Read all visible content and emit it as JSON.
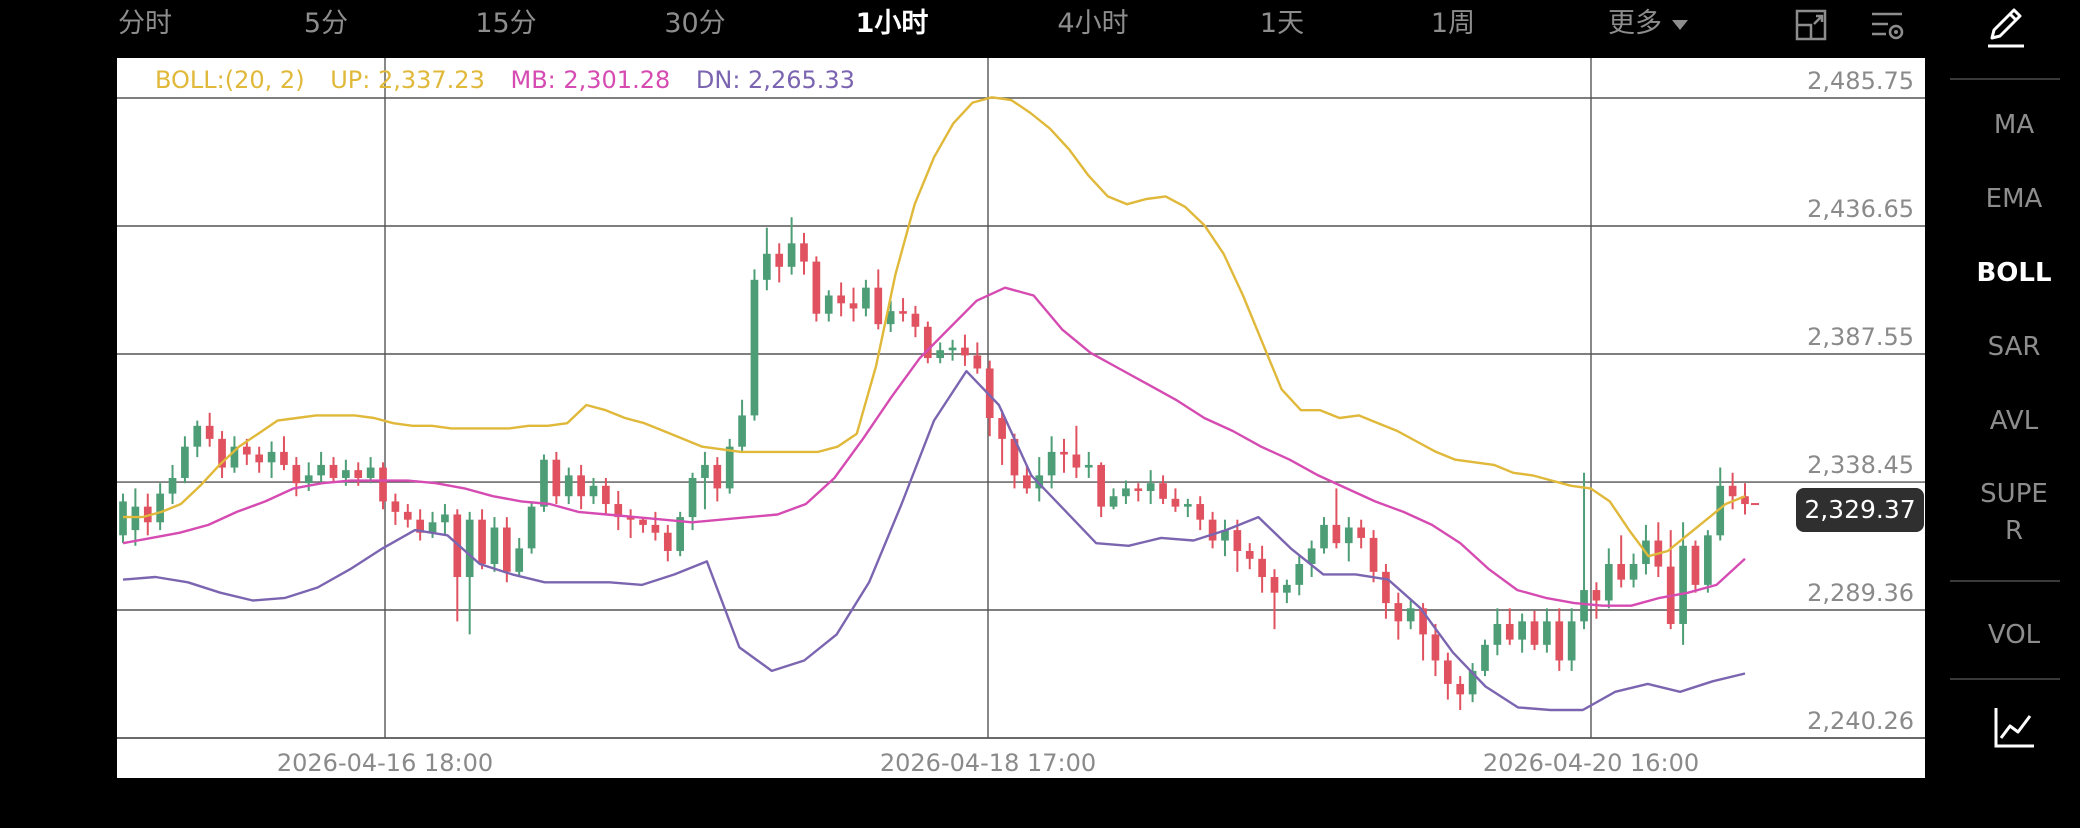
{
  "timeframes": [
    {
      "label": "分时",
      "active": false
    },
    {
      "label": "5分",
      "active": false
    },
    {
      "label": "15分",
      "active": false
    },
    {
      "label": "30分",
      "active": false
    },
    {
      "label": "1小时",
      "active": true
    },
    {
      "label": "4小时",
      "active": false
    },
    {
      "label": "1天",
      "active": false
    },
    {
      "label": "1周",
      "active": false
    },
    {
      "label": "更多",
      "active": false
    }
  ],
  "toolbar_icons": [
    "landscape-icon",
    "chart-settings-icon",
    "pencil-draw-icon"
  ],
  "indicators": {
    "main": [
      "MA",
      "EMA",
      "BOLL",
      "SAR",
      "AVL",
      "SUPE\nR"
    ],
    "active": "BOLL",
    "sub": [
      "VOL"
    ],
    "bottom_icon": "indicator-chart-icon"
  },
  "legend": {
    "name": "BOLL:(20, 2)",
    "up": "UP: 2,337.23",
    "mb": "MB: 2,301.28",
    "dn": "DN: 2,265.33"
  },
  "current_price": "2,329.37",
  "colors": {
    "background": "#000000",
    "chart_bg": "#ffffff",
    "up_candle": "#4d9e76",
    "down_candle": "#e0525f",
    "boll_up": "#e0b83a",
    "boll_mid": "#d54bb2",
    "boll_dn": "#7b65b0",
    "grid": "#555555",
    "axis_text": "#8a8a8a"
  },
  "chart_data": {
    "type": "candlestick",
    "y_ticks": [
      "2,485.75",
      "2,436.65",
      "2,387.55",
      "2,338.45",
      "2,289.36",
      "2,240.26"
    ],
    "x_ticks": [
      "2026-04-16 18:00",
      "2026-04-18 17:00",
      "2026-04-20 16:00"
    ],
    "ylim": [
      2240.26,
      2485.75
    ],
    "grid": true,
    "indicator": "BOLL(20, 2)",
    "candles": [
      [
        2318,
        2331,
        2315,
        2334
      ],
      [
        2320,
        2329,
        2314,
        2336
      ],
      [
        2329,
        2323,
        2318,
        2334
      ],
      [
        2323,
        2334,
        2320,
        2338
      ],
      [
        2334,
        2340,
        2330,
        2345
      ],
      [
        2340,
        2352,
        2338,
        2356
      ],
      [
        2352,
        2360,
        2348,
        2362
      ],
      [
        2360,
        2355,
        2352,
        2365
      ],
      [
        2355,
        2344,
        2340,
        2358
      ],
      [
        2344,
        2352,
        2342,
        2356
      ],
      [
        2352,
        2349,
        2345,
        2355
      ],
      [
        2349,
        2346,
        2342,
        2352
      ],
      [
        2346,
        2350,
        2340,
        2354
      ],
      [
        2350,
        2345,
        2343,
        2356
      ],
      [
        2345,
        2338,
        2333,
        2348
      ],
      [
        2338,
        2341,
        2335,
        2346
      ],
      [
        2341,
        2345,
        2338,
        2350
      ],
      [
        2345,
        2340,
        2338,
        2348
      ],
      [
        2340,
        2343,
        2337,
        2347
      ],
      [
        2343,
        2340,
        2337,
        2346
      ],
      [
        2340,
        2344,
        2338,
        2348
      ],
      [
        2344,
        2331,
        2328,
        2346
      ],
      [
        2331,
        2327,
        2322,
        2334
      ],
      [
        2327,
        2324,
        2321,
        2330
      ],
      [
        2324,
        2319,
        2316,
        2328
      ],
      [
        2319,
        2323,
        2317,
        2327
      ],
      [
        2323,
        2326,
        2318,
        2330
      ],
      [
        2326,
        2302,
        2285,
        2328
      ],
      [
        2302,
        2324,
        2280,
        2327
      ],
      [
        2324,
        2307,
        2305,
        2328
      ],
      [
        2307,
        2321,
        2304,
        2325
      ],
      [
        2321,
        2304,
        2300,
        2325
      ],
      [
        2304,
        2313,
        2302,
        2317
      ],
      [
        2313,
        2329,
        2311,
        2331
      ],
      [
        2329,
        2347,
        2327,
        2349
      ],
      [
        2347,
        2333,
        2330,
        2350
      ],
      [
        2333,
        2341,
        2330,
        2344
      ],
      [
        2341,
        2333,
        2328,
        2345
      ],
      [
        2333,
        2337,
        2330,
        2340
      ],
      [
        2337,
        2330,
        2326,
        2340
      ],
      [
        2330,
        2325,
        2320,
        2335
      ],
      [
        2325,
        2324,
        2317,
        2328
      ],
      [
        2324,
        2322,
        2319,
        2325
      ],
      [
        2322,
        2319,
        2316,
        2327
      ],
      [
        2319,
        2312,
        2308,
        2322
      ],
      [
        2312,
        2325,
        2310,
        2327
      ],
      [
        2325,
        2340,
        2320,
        2342
      ],
      [
        2340,
        2345,
        2328,
        2350
      ],
      [
        2345,
        2336,
        2331,
        2348
      ],
      [
        2336,
        2352,
        2334,
        2355
      ],
      [
        2352,
        2364,
        2350,
        2370
      ],
      [
        2364,
        2416,
        2362,
        2420
      ],
      [
        2416,
        2426,
        2412,
        2436
      ],
      [
        2426,
        2421,
        2415,
        2430
      ],
      [
        2421,
        2430,
        2418,
        2440
      ],
      [
        2430,
        2423,
        2418,
        2434
      ],
      [
        2423,
        2403,
        2400,
        2425
      ],
      [
        2403,
        2410,
        2400,
        2412
      ],
      [
        2410,
        2407,
        2402,
        2415
      ],
      [
        2407,
        2405,
        2400,
        2413
      ],
      [
        2405,
        2413,
        2402,
        2416
      ],
      [
        2413,
        2399,
        2397,
        2420
      ],
      [
        2399,
        2404,
        2396,
        2408
      ],
      [
        2404,
        2403,
        2400,
        2409
      ],
      [
        2403,
        2398,
        2394,
        2406
      ],
      [
        2398,
        2386,
        2384,
        2400
      ],
      [
        2386,
        2389,
        2384,
        2392
      ],
      [
        2389,
        2390,
        2385,
        2393
      ],
      [
        2390,
        2387,
        2383,
        2395
      ],
      [
        2387,
        2382,
        2380,
        2392
      ],
      [
        2382,
        2363,
        2356,
        2385
      ],
      [
        2363,
        2355,
        2345,
        2366
      ],
      [
        2355,
        2341,
        2336,
        2357
      ],
      [
        2341,
        2336,
        2334,
        2345
      ],
      [
        2336,
        2341,
        2331,
        2348
      ],
      [
        2341,
        2350,
        2336,
        2356
      ],
      [
        2350,
        2349,
        2342,
        2355
      ],
      [
        2349,
        2344,
        2340,
        2360
      ],
      [
        2344,
        2345,
        2340,
        2350
      ],
      [
        2345,
        2329,
        2325,
        2346
      ],
      [
        2329,
        2333,
        2328,
        2336
      ],
      [
        2333,
        2336,
        2330,
        2339
      ],
      [
        2336,
        2335,
        2331,
        2338
      ],
      [
        2335,
        2338,
        2330,
        2343
      ],
      [
        2338,
        2332,
        2330,
        2341
      ],
      [
        2332,
        2329,
        2327,
        2336
      ],
      [
        2329,
        2330,
        2325,
        2332
      ],
      [
        2330,
        2324,
        2320,
        2333
      ],
      [
        2324,
        2316,
        2313,
        2327
      ],
      [
        2316,
        2320,
        2310,
        2324
      ],
      [
        2320,
        2312,
        2304,
        2324
      ],
      [
        2312,
        2309,
        2305,
        2315
      ],
      [
        2309,
        2302,
        2296,
        2314
      ],
      [
        2302,
        2296,
        2282,
        2305
      ],
      [
        2296,
        2299,
        2292,
        2301
      ],
      [
        2299,
        2307,
        2295,
        2310
      ],
      [
        2307,
        2313,
        2302,
        2316
      ],
      [
        2313,
        2322,
        2311,
        2325
      ],
      [
        2322,
        2315,
        2313,
        2336
      ],
      [
        2315,
        2321,
        2308,
        2325
      ],
      [
        2321,
        2317,
        2313,
        2324
      ],
      [
        2317,
        2304,
        2300,
        2320
      ],
      [
        2304,
        2292,
        2286,
        2307
      ],
      [
        2292,
        2285,
        2278,
        2296
      ],
      [
        2285,
        2290,
        2282,
        2293
      ],
      [
        2290,
        2280,
        2270,
        2292
      ],
      [
        2280,
        2270,
        2264,
        2284
      ],
      [
        2270,
        2261,
        2255,
        2273
      ],
      [
        2261,
        2257,
        2251,
        2264
      ],
      [
        2257,
        2266,
        2254,
        2269
      ],
      [
        2266,
        2276,
        2264,
        2278
      ],
      [
        2276,
        2284,
        2272,
        2290
      ],
      [
        2284,
        2278,
        2276,
        2290
      ],
      [
        2278,
        2285,
        2273,
        2288
      ],
      [
        2285,
        2276,
        2274,
        2289
      ],
      [
        2276,
        2285,
        2273,
        2290
      ],
      [
        2285,
        2270,
        2266,
        2290
      ],
      [
        2270,
        2285,
        2266,
        2290
      ],
      [
        2285,
        2297,
        2282,
        2342
      ],
      [
        2297,
        2293,
        2286,
        2300
      ],
      [
        2293,
        2307,
        2290,
        2313
      ],
      [
        2307,
        2301,
        2298,
        2318
      ],
      [
        2301,
        2307,
        2298,
        2311
      ],
      [
        2307,
        2316,
        2303,
        2322
      ],
      [
        2316,
        2306,
        2302,
        2323
      ],
      [
        2306,
        2284,
        2282,
        2320
      ],
      [
        2284,
        2314,
        2276,
        2323
      ],
      [
        2314,
        2299,
        2296,
        2316
      ],
      [
        2299,
        2318,
        2296,
        2320
      ],
      [
        2318,
        2337,
        2316,
        2344
      ],
      [
        2337,
        2333,
        2328,
        2342
      ],
      [
        2333,
        2330,
        2326,
        2338
      ]
    ],
    "boll_up": [
      2325,
      2325,
      2327,
      2330,
      2337,
      2345,
      2352,
      2357,
      2362,
      2363,
      2364,
      2364,
      2364,
      2363,
      2361,
      2360,
      2360,
      2359,
      2359,
      2359,
      2359,
      2360,
      2360,
      2361,
      2368,
      2366,
      2363,
      2361,
      2358,
      2355,
      2352,
      2351,
      2350,
      2350,
      2350,
      2350,
      2350,
      2352,
      2357,
      2383,
      2418,
      2445,
      2463,
      2476,
      2484,
      2486,
      2485,
      2480,
      2474,
      2466,
      2456,
      2448,
      2445,
      2447,
      2448,
      2444,
      2437,
      2426,
      2410,
      2392,
      2374,
      2366,
      2366,
      2363,
      2364,
      2361,
      2358,
      2354,
      2350,
      2347,
      2346,
      2345,
      2342,
      2341,
      2339,
      2337,
      2336,
      2331,
      2320,
      2310,
      2312,
      2318,
      2324,
      2330,
      2333
    ],
    "boll_mid": [
      2315,
      2317,
      2319,
      2322,
      2327,
      2331,
      2336,
      2338,
      2339,
      2339,
      2339,
      2338,
      2336,
      2333,
      2331,
      2330,
      2327,
      2326,
      2325,
      2324,
      2323,
      2324,
      2325,
      2326,
      2330,
      2340,
      2355,
      2371,
      2386,
      2397,
      2408,
      2413,
      2410,
      2397,
      2388,
      2382,
      2376,
      2370,
      2363,
      2358,
      2352,
      2347,
      2341,
      2336,
      2331,
      2327,
      2322,
      2315,
      2305,
      2297,
      2294,
      2292,
      2291,
      2291,
      2294,
      2296,
      2299,
      2309
    ],
    "boll_dn": [
      2301,
      2302,
      2300,
      2296,
      2293,
      2294,
      2298,
      2305,
      2313,
      2320,
      2318,
      2307,
      2303,
      2300,
      2300,
      2300,
      2299,
      2303,
      2308,
      2275,
      2266,
      2270,
      2280,
      2300,
      2330,
      2362,
      2381,
      2368,
      2341,
      2328,
      2315,
      2314,
      2317,
      2316,
      2320,
      2325,
      2313,
      2303,
      2303,
      2301,
      2290,
      2273,
      2260,
      2252,
      2251,
      2251,
      2258,
      2261,
      2258,
      2262,
      2265
    ]
  }
}
